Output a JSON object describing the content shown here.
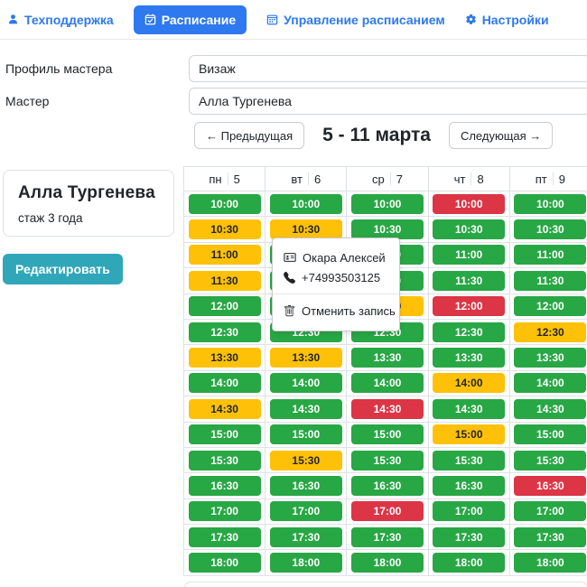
{
  "colors": {
    "accent": "#2e78f0",
    "green": "#28a745",
    "yellow": "#ffc107",
    "red": "#dc3545",
    "teal": "#2fa7b9"
  },
  "nav": {
    "items": [
      {
        "id": "support",
        "label": "Техподдержка",
        "icon": "user-headset",
        "active": false
      },
      {
        "id": "schedule",
        "label": "Расписание",
        "icon": "calendar-check",
        "active": true
      },
      {
        "id": "manage",
        "label": "Управление расписанием",
        "icon": "calendar",
        "active": false
      },
      {
        "id": "settings",
        "label": "Настройки",
        "icon": "gear",
        "active": false
      }
    ]
  },
  "form": {
    "profile_label": "Профиль мастера",
    "profile_value": "Визаж",
    "master_label": "Мастер",
    "master_value": "Алла Тургенева"
  },
  "week_nav": {
    "prev_label": "← Предыдущая",
    "title": "5 - 11 марта",
    "next_label": "Следующая →"
  },
  "profile_card": {
    "name": "Алла Тургенева",
    "experience": "стаж 3 года",
    "edit_label": "Редактировать"
  },
  "schedule": {
    "days": [
      {
        "name": "пн",
        "date": "5"
      },
      {
        "name": "вт",
        "date": "6"
      },
      {
        "name": "ср",
        "date": "7"
      },
      {
        "name": "чт",
        "date": "8"
      },
      {
        "name": "пт",
        "date": "9"
      }
    ],
    "times": [
      "10:00",
      "10:30",
      "11:00",
      "11:30",
      "12:00",
      "12:30",
      "13:30",
      "14:00",
      "14:30",
      "15:00",
      "15:30",
      "16:30",
      "17:00",
      "17:30",
      "18:00"
    ],
    "grid": [
      [
        "green",
        "green",
        "green",
        "red",
        "green"
      ],
      [
        "yellow",
        "yellow",
        "green",
        "green",
        "green"
      ],
      [
        "yellow",
        "green",
        "green",
        "green",
        "green"
      ],
      [
        "yellow",
        "green",
        "green",
        "green",
        "green"
      ],
      [
        "green",
        "green",
        "yellow",
        "red",
        "green"
      ],
      [
        "green",
        "green",
        "green",
        "green",
        "yellow"
      ],
      [
        "yellow",
        "yellow",
        "green",
        "green",
        "green"
      ],
      [
        "green",
        "green",
        "green",
        "yellow",
        "green"
      ],
      [
        "yellow",
        "green",
        "red",
        "green",
        "green"
      ],
      [
        "green",
        "green",
        "green",
        "yellow",
        "green"
      ],
      [
        "green",
        "yellow",
        "green",
        "green",
        "green"
      ],
      [
        "green",
        "green",
        "green",
        "green",
        "red"
      ],
      [
        "green",
        "green",
        "red",
        "green",
        "green"
      ],
      [
        "green",
        "green",
        "green",
        "green",
        "green"
      ],
      [
        "green",
        "green",
        "green",
        "green",
        "green"
      ]
    ]
  },
  "popup": {
    "anchor": "вт 10:30",
    "client_name": "Окара Алексей",
    "phone": "+74993503125",
    "cancel_label": "Отменить запись"
  }
}
